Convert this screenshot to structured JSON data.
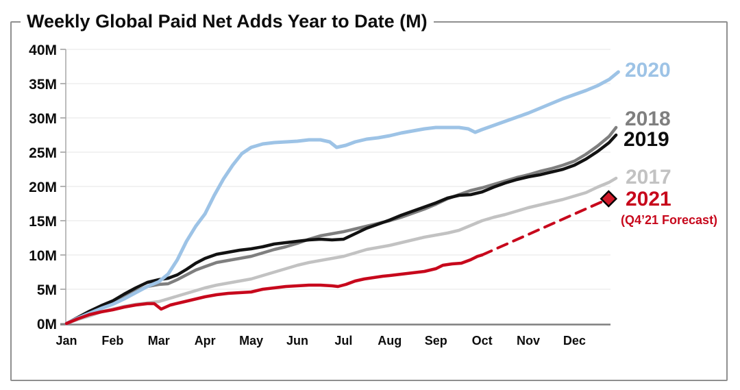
{
  "page": {
    "title": "Weekly Global Paid Net Adds Year to Date (M)"
  },
  "chart_data": {
    "type": "line",
    "title": "Weekly Global Paid Net Adds Year to Date (M)",
    "unit": "M",
    "grid": true,
    "y_axis": {
      "min": 0,
      "max": 40,
      "tick_step": 5,
      "ticks": [
        {
          "value": 0,
          "label": "0M"
        },
        {
          "value": 5,
          "label": "5M"
        },
        {
          "value": 10,
          "label": "10M"
        },
        {
          "value": 15,
          "label": "15M"
        },
        {
          "value": 20,
          "label": "20M"
        },
        {
          "value": 25,
          "label": "25M"
        },
        {
          "value": 30,
          "label": "30M"
        },
        {
          "value": 35,
          "label": "35M"
        },
        {
          "value": 40,
          "label": "40M"
        }
      ]
    },
    "x_axis": {
      "tick_labels": [
        "Jan",
        "Feb",
        "Mar",
        "Apr",
        "May",
        "Jun",
        "Jul",
        "Aug",
        "Sep",
        "Oct",
        "Nov",
        "Dec"
      ]
    },
    "series": [
      {
        "name": "2017",
        "color": "#C2C2C2",
        "width": 4.5,
        "style": "solid",
        "points": [
          [
            0,
            0
          ],
          [
            0.25,
            0.6
          ],
          [
            0.5,
            1.1
          ],
          [
            0.75,
            1.7
          ],
          [
            1,
            2.1
          ],
          [
            1.25,
            2.5
          ],
          [
            1.5,
            2.8
          ],
          [
            1.75,
            3.0
          ],
          [
            2,
            3.2
          ],
          [
            2.25,
            3.7
          ],
          [
            2.5,
            4.2
          ],
          [
            2.75,
            4.7
          ],
          [
            3,
            5.2
          ],
          [
            3.25,
            5.6
          ],
          [
            3.5,
            5.9
          ],
          [
            3.75,
            6.2
          ],
          [
            4,
            6.5
          ],
          [
            4.25,
            7.0
          ],
          [
            4.5,
            7.5
          ],
          [
            4.75,
            8.0
          ],
          [
            5,
            8.5
          ],
          [
            5.25,
            8.9
          ],
          [
            5.5,
            9.2
          ],
          [
            5.75,
            9.5
          ],
          [
            6,
            9.8
          ],
          [
            6.25,
            10.3
          ],
          [
            6.5,
            10.8
          ],
          [
            6.75,
            11.1
          ],
          [
            7,
            11.4
          ],
          [
            7.25,
            11.8
          ],
          [
            7.5,
            12.2
          ],
          [
            7.75,
            12.6
          ],
          [
            8,
            12.9
          ],
          [
            8.25,
            13.2
          ],
          [
            8.5,
            13.6
          ],
          [
            8.75,
            14.3
          ],
          [
            9,
            15.0
          ],
          [
            9.25,
            15.5
          ],
          [
            9.5,
            15.9
          ],
          [
            9.75,
            16.4
          ],
          [
            10,
            16.9
          ],
          [
            10.25,
            17.3
          ],
          [
            10.5,
            17.7
          ],
          [
            10.75,
            18.1
          ],
          [
            11,
            18.6
          ],
          [
            11.25,
            19.1
          ],
          [
            11.5,
            19.9
          ],
          [
            11.75,
            20.6
          ],
          [
            11.9,
            21.2
          ]
        ]
      },
      {
        "name": "2018",
        "color": "#7F7F7F",
        "width": 4.5,
        "style": "solid",
        "points": [
          [
            0,
            0
          ],
          [
            0.25,
            0.8
          ],
          [
            0.5,
            1.6
          ],
          [
            0.75,
            2.3
          ],
          [
            1,
            3.0
          ],
          [
            1.25,
            3.9
          ],
          [
            1.5,
            4.7
          ],
          [
            1.75,
            5.4
          ],
          [
            2,
            5.7
          ],
          [
            2.2,
            5.8
          ],
          [
            2.4,
            6.4
          ],
          [
            2.6,
            7.1
          ],
          [
            2.8,
            7.8
          ],
          [
            3,
            8.3
          ],
          [
            3.25,
            8.9
          ],
          [
            3.5,
            9.2
          ],
          [
            3.75,
            9.5
          ],
          [
            4,
            9.8
          ],
          [
            4.25,
            10.3
          ],
          [
            4.5,
            10.8
          ],
          [
            4.75,
            11.2
          ],
          [
            5,
            11.7
          ],
          [
            5.25,
            12.3
          ],
          [
            5.5,
            12.8
          ],
          [
            5.75,
            13.1
          ],
          [
            6,
            13.4
          ],
          [
            6.25,
            13.8
          ],
          [
            6.5,
            14.2
          ],
          [
            6.75,
            14.6
          ],
          [
            7,
            15.0
          ],
          [
            7.25,
            15.5
          ],
          [
            7.5,
            16.1
          ],
          [
            7.75,
            16.7
          ],
          [
            8,
            17.4
          ],
          [
            8.25,
            18.2
          ],
          [
            8.5,
            18.8
          ],
          [
            8.75,
            19.4
          ],
          [
            9,
            19.8
          ],
          [
            9.25,
            20.3
          ],
          [
            9.5,
            20.8
          ],
          [
            9.75,
            21.3
          ],
          [
            10,
            21.7
          ],
          [
            10.25,
            22.2
          ],
          [
            10.5,
            22.6
          ],
          [
            10.75,
            23.1
          ],
          [
            11,
            23.7
          ],
          [
            11.25,
            24.7
          ],
          [
            11.5,
            25.9
          ],
          [
            11.75,
            27.3
          ],
          [
            11.9,
            28.6
          ]
        ]
      },
      {
        "name": "2019",
        "color": "#121212",
        "width": 4.5,
        "style": "solid",
        "points": [
          [
            0,
            0
          ],
          [
            0.25,
            0.9
          ],
          [
            0.5,
            1.8
          ],
          [
            0.75,
            2.6
          ],
          [
            1,
            3.3
          ],
          [
            1.25,
            4.3
          ],
          [
            1.5,
            5.2
          ],
          [
            1.75,
            6.0
          ],
          [
            2,
            6.4
          ],
          [
            2.2,
            6.6
          ],
          [
            2.4,
            7.1
          ],
          [
            2.6,
            7.9
          ],
          [
            2.8,
            8.8
          ],
          [
            3,
            9.5
          ],
          [
            3.25,
            10.1
          ],
          [
            3.5,
            10.4
          ],
          [
            3.75,
            10.7
          ],
          [
            4,
            10.9
          ],
          [
            4.25,
            11.2
          ],
          [
            4.5,
            11.6
          ],
          [
            4.75,
            11.8
          ],
          [
            5,
            12.0
          ],
          [
            5.25,
            12.2
          ],
          [
            5.5,
            12.3
          ],
          [
            5.75,
            12.2
          ],
          [
            6,
            12.3
          ],
          [
            6.25,
            13.1
          ],
          [
            6.5,
            13.9
          ],
          [
            6.75,
            14.5
          ],
          [
            7,
            15.1
          ],
          [
            7.25,
            15.8
          ],
          [
            7.5,
            16.4
          ],
          [
            7.75,
            17.0
          ],
          [
            8,
            17.6
          ],
          [
            8.25,
            18.3
          ],
          [
            8.5,
            18.7
          ],
          [
            8.75,
            18.8
          ],
          [
            9,
            19.2
          ],
          [
            9.25,
            19.9
          ],
          [
            9.5,
            20.5
          ],
          [
            9.75,
            21.0
          ],
          [
            10,
            21.4
          ],
          [
            10.25,
            21.7
          ],
          [
            10.5,
            22.1
          ],
          [
            10.75,
            22.5
          ],
          [
            11,
            23.1
          ],
          [
            11.25,
            24.0
          ],
          [
            11.5,
            25.1
          ],
          [
            11.75,
            26.4
          ],
          [
            11.9,
            27.5
          ]
        ]
      },
      {
        "name": "2020",
        "color": "#9DC3E6",
        "width": 5,
        "style": "solid",
        "points": [
          [
            0,
            0
          ],
          [
            0.25,
            0.8
          ],
          [
            0.5,
            1.5
          ],
          [
            0.75,
            2.2
          ],
          [
            1,
            2.8
          ],
          [
            1.25,
            3.6
          ],
          [
            1.5,
            4.5
          ],
          [
            1.75,
            5.4
          ],
          [
            2,
            6.1
          ],
          [
            2.2,
            7.2
          ],
          [
            2.4,
            9.3
          ],
          [
            2.6,
            12.0
          ],
          [
            2.8,
            14.2
          ],
          [
            3,
            16.0
          ],
          [
            3.2,
            18.7
          ],
          [
            3.4,
            21.1
          ],
          [
            3.6,
            23.1
          ],
          [
            3.8,
            24.8
          ],
          [
            4,
            25.7
          ],
          [
            4.25,
            26.2
          ],
          [
            4.5,
            26.4
          ],
          [
            4.75,
            26.5
          ],
          [
            5,
            26.6
          ],
          [
            5.25,
            26.8
          ],
          [
            5.5,
            26.8
          ],
          [
            5.7,
            26.5
          ],
          [
            5.85,
            25.7
          ],
          [
            6.05,
            26.0
          ],
          [
            6.25,
            26.5
          ],
          [
            6.5,
            26.9
          ],
          [
            6.75,
            27.1
          ],
          [
            7,
            27.4
          ],
          [
            7.25,
            27.8
          ],
          [
            7.5,
            28.1
          ],
          [
            7.75,
            28.4
          ],
          [
            8,
            28.6
          ],
          [
            8.25,
            28.6
          ],
          [
            8.5,
            28.6
          ],
          [
            8.7,
            28.4
          ],
          [
            8.85,
            27.9
          ],
          [
            9,
            28.3
          ],
          [
            9.25,
            28.9
          ],
          [
            9.5,
            29.5
          ],
          [
            9.75,
            30.1
          ],
          [
            10,
            30.7
          ],
          [
            10.25,
            31.4
          ],
          [
            10.5,
            32.1
          ],
          [
            10.75,
            32.8
          ],
          [
            11,
            33.4
          ],
          [
            11.25,
            34.0
          ],
          [
            11.5,
            34.7
          ],
          [
            11.75,
            35.6
          ],
          [
            11.95,
            36.7
          ]
        ]
      },
      {
        "name": "2021",
        "color": "#C7081C",
        "width": 4.5,
        "style": "solid",
        "points": [
          [
            0,
            0
          ],
          [
            0.25,
            0.7
          ],
          [
            0.5,
            1.3
          ],
          [
            0.75,
            1.7
          ],
          [
            1,
            2.0
          ],
          [
            1.25,
            2.4
          ],
          [
            1.5,
            2.7
          ],
          [
            1.75,
            2.9
          ],
          [
            1.9,
            2.9
          ],
          [
            2.05,
            2.1
          ],
          [
            2.25,
            2.7
          ],
          [
            2.5,
            3.1
          ],
          [
            2.75,
            3.5
          ],
          [
            3,
            3.9
          ],
          [
            3.25,
            4.2
          ],
          [
            3.5,
            4.4
          ],
          [
            3.75,
            4.5
          ],
          [
            4,
            4.6
          ],
          [
            4.25,
            5.0
          ],
          [
            4.5,
            5.2
          ],
          [
            4.75,
            5.4
          ],
          [
            5,
            5.5
          ],
          [
            5.25,
            5.6
          ],
          [
            5.5,
            5.6
          ],
          [
            5.75,
            5.5
          ],
          [
            5.88,
            5.4
          ],
          [
            6.05,
            5.7
          ],
          [
            6.25,
            6.2
          ],
          [
            6.45,
            6.5
          ],
          [
            6.65,
            6.7
          ],
          [
            6.85,
            6.9
          ],
          [
            7,
            7.0
          ],
          [
            7.25,
            7.2
          ],
          [
            7.5,
            7.4
          ],
          [
            7.75,
            7.6
          ],
          [
            8,
            8.0
          ],
          [
            8.15,
            8.5
          ],
          [
            8.35,
            8.7
          ],
          [
            8.55,
            8.8
          ],
          [
            8.75,
            9.3
          ],
          [
            8.9,
            9.8
          ],
          [
            9,
            10.0
          ]
        ]
      },
      {
        "name": "2021-forecast",
        "color": "#C7081C",
        "width": 4,
        "style": "dashed",
        "points": [
          [
            9,
            10.0
          ],
          [
            11.74,
            18.2
          ]
        ],
        "end_marker": {
          "shape": "diamond",
          "x": 11.74,
          "value": 18.2,
          "fill": "#D11A2A",
          "stroke": "#000000"
        }
      }
    ],
    "legend": {
      "position": "right",
      "items": [
        {
          "id": "2020",
          "label": "2020",
          "color": "#9DC3E6"
        },
        {
          "id": "2018",
          "label": "2018",
          "color": "#7F7F7F"
        },
        {
          "id": "2019",
          "label": "2019",
          "color": "#0d0d0d"
        },
        {
          "id": "2017",
          "label": "2017",
          "color": "#C2C2C2"
        },
        {
          "id": "2021",
          "label": "2021",
          "color": "#C7081C",
          "note": "(Q4’21 Forecast)"
        }
      ]
    }
  }
}
